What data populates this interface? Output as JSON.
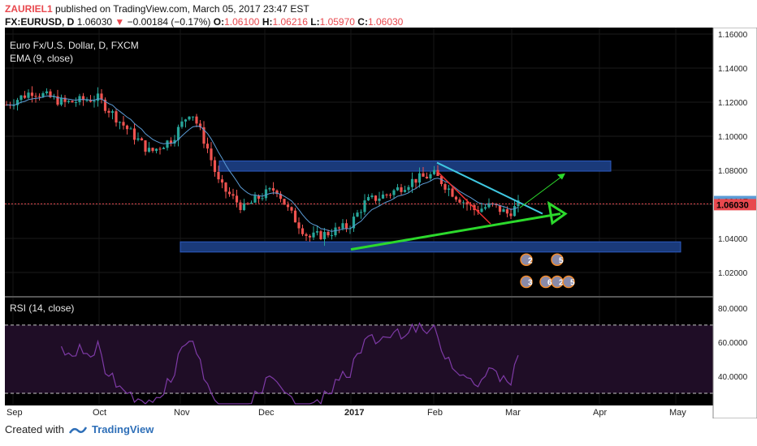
{
  "header": {
    "user": "ZAURIEL1",
    "published": "published on TradingView.com, March 05, 2017 23:47 EST",
    "symbol": "FX:EURUSD, D",
    "price": "1.06030",
    "change_arrow": "▼",
    "change": "−0.00184 (−0.17%)",
    "o_label": "O:",
    "o": "1.06100",
    "h_label": "H:",
    "h": "1.06216",
    "l_label": "L:",
    "l": "1.05970",
    "c_label": "C:",
    "c": "1.06030"
  },
  "legend": {
    "title": "Euro Fx/U.S. Dollar, D, FXCM",
    "ema": "EMA (9, close)",
    "rsi": "RSI (14, close)"
  },
  "footer": {
    "created_with": "Created with",
    "brand": "TradingView"
  },
  "colors": {
    "background": "#000000",
    "up": "#26a69a",
    "down": "#ef5350",
    "ema": "#5b9bd5",
    "zone": "#1a3a7a",
    "rsi": "#7e3aa6",
    "rsi_band": "#1f0d26",
    "trend_green": "#2cd92c",
    "trend_cyan": "#3fc7e0",
    "current_price": "#e8484e"
  },
  "chart_data": [
    {
      "type": "candlestick",
      "x": [
        "Sep",
        "Oct",
        "Nov",
        "Dec",
        "2017",
        "Feb",
        "Mar",
        "Apr",
        "May"
      ],
      "ylim": [
        1.0,
        1.165
      ],
      "yticks": [
        "1.16000",
        "1.14000",
        "1.12000",
        "1.10000",
        "1.08000",
        "1.06000",
        "1.04000",
        "1.02000"
      ],
      "current_price": "1.06030",
      "ema_value": "1.06117",
      "annotations": {
        "resistance_zone": [
          1.0795,
          1.0855
        ],
        "support_zone": [
          1.032,
          1.038
        ],
        "events": [
          "2",
          "5",
          "3",
          "2",
          "5",
          "6"
        ]
      }
    },
    {
      "type": "line",
      "name": "RSI (14, close)",
      "ylim": [
        25,
        80
      ],
      "yticks": [
        "80.0000",
        "60.0000",
        "40.0000"
      ],
      "bands": [
        30,
        70
      ]
    }
  ]
}
